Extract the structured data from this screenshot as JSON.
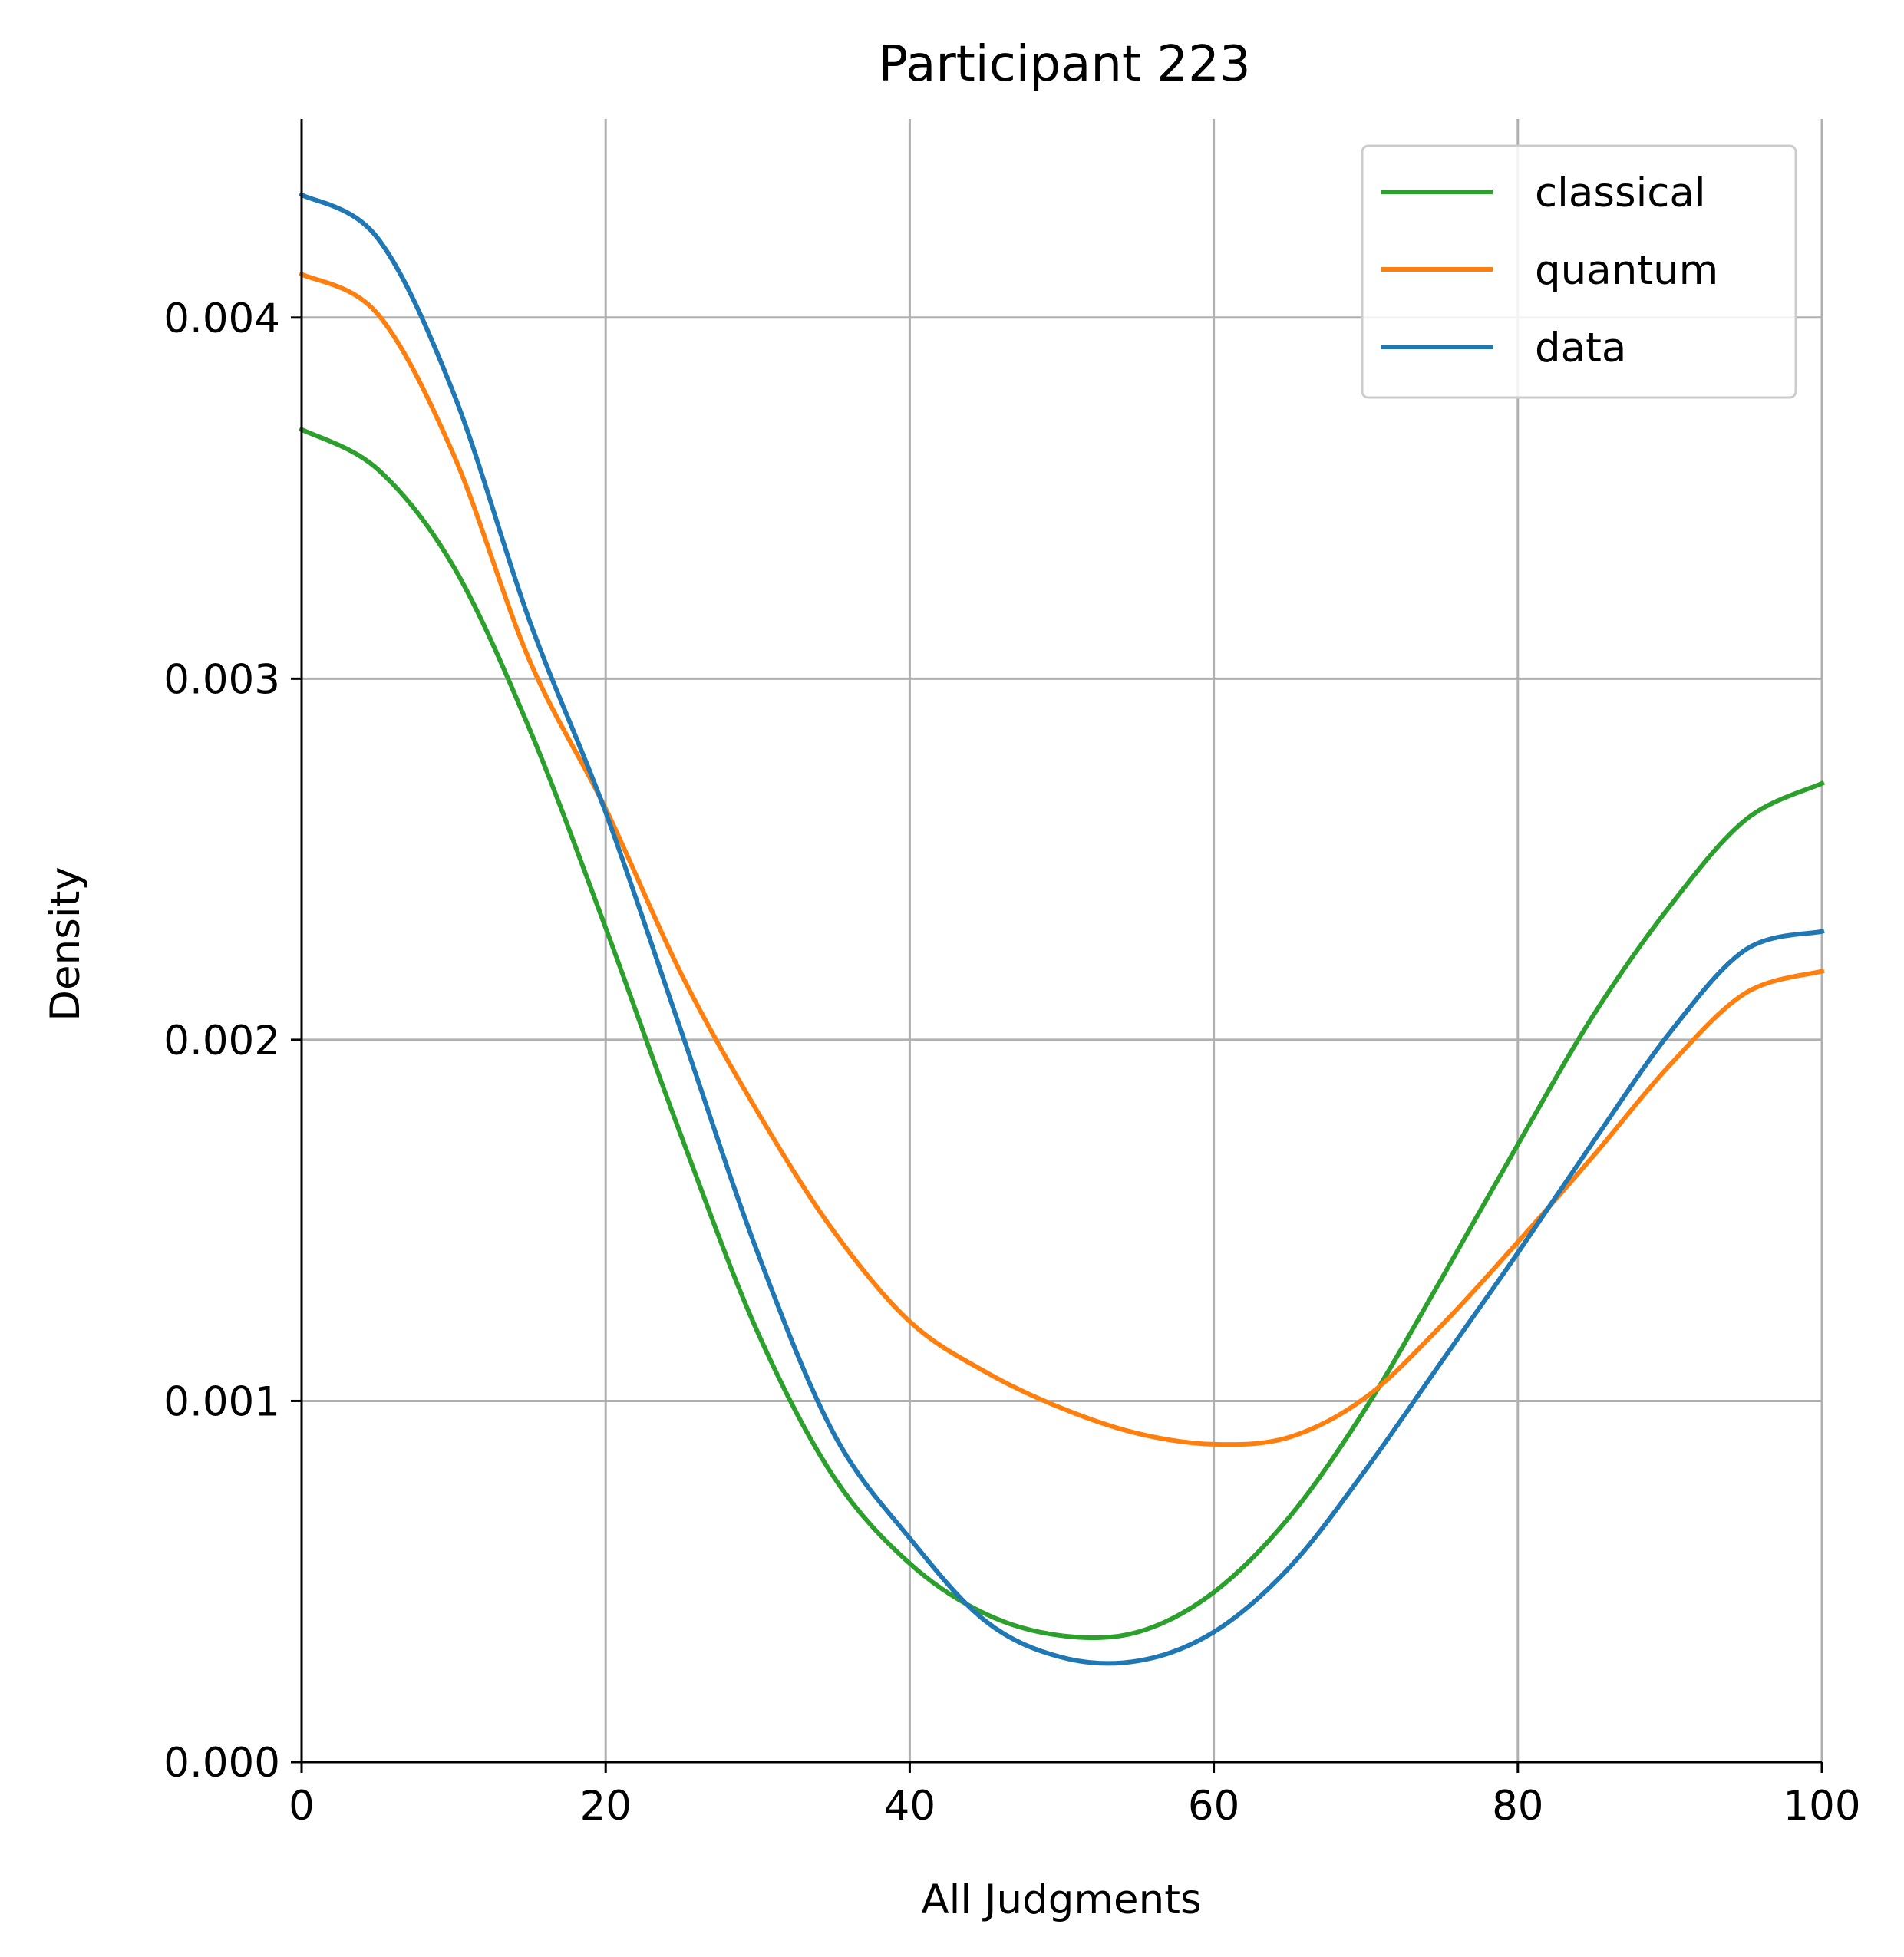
{
  "chart_data": {
    "type": "line",
    "title": "Participant 223",
    "xlabel": "All Judgments",
    "ylabel": "Density",
    "xlim": [
      0,
      100
    ],
    "ylim": [
      0,
      0.00455
    ],
    "xticks": [
      0,
      20,
      40,
      60,
      80,
      100
    ],
    "xtick_labels": [
      "0",
      "20",
      "40",
      "60",
      "80",
      "100"
    ],
    "yticks": [
      0,
      0.001,
      0.002,
      0.003,
      0.004
    ],
    "ytick_labels": [
      "0.000",
      "0.001",
      "0.002",
      "0.003",
      "0.004"
    ],
    "grid": true,
    "legend_position": "top-right",
    "x": [
      0,
      5,
      10,
      15,
      20,
      25,
      30,
      35,
      40,
      45,
      50,
      55,
      60,
      65,
      70,
      75,
      80,
      85,
      90,
      95,
      100
    ],
    "series": [
      {
        "name": "classical",
        "color": "#2ca02c",
        "values": [
          0.00369,
          0.00358,
          0.00331,
          0.00286,
          0.00231,
          0.00173,
          0.00119,
          0.00079,
          0.00055,
          0.00041,
          0.00035,
          0.00036,
          0.00047,
          0.00068,
          0.00098,
          0.00134,
          0.00171,
          0.00207,
          0.00237,
          0.00261,
          0.00271
        ]
      },
      {
        "name": "quantum",
        "color": "#ff7f0e",
        "values": [
          0.00412,
          0.00401,
          0.00362,
          0.00305,
          0.00264,
          0.00218,
          0.0018,
          0.00147,
          0.00122,
          0.00108,
          0.00098,
          0.00091,
          0.00088,
          0.0009,
          0.00101,
          0.00121,
          0.00144,
          0.00168,
          0.00193,
          0.00213,
          0.00219
        ]
      },
      {
        "name": "data",
        "color": "#1f77b4",
        "values": [
          0.00434,
          0.00422,
          0.00379,
          0.00316,
          0.00263,
          0.00202,
          0.00141,
          0.00091,
          0.00062,
          0.00039,
          0.00029,
          0.00028,
          0.00036,
          0.00054,
          0.00081,
          0.00111,
          0.00141,
          0.00172,
          0.00202,
          0.00225,
          0.0023
        ]
      }
    ],
    "axis_color": "#000000",
    "grid_color": "#b0b0b0"
  }
}
